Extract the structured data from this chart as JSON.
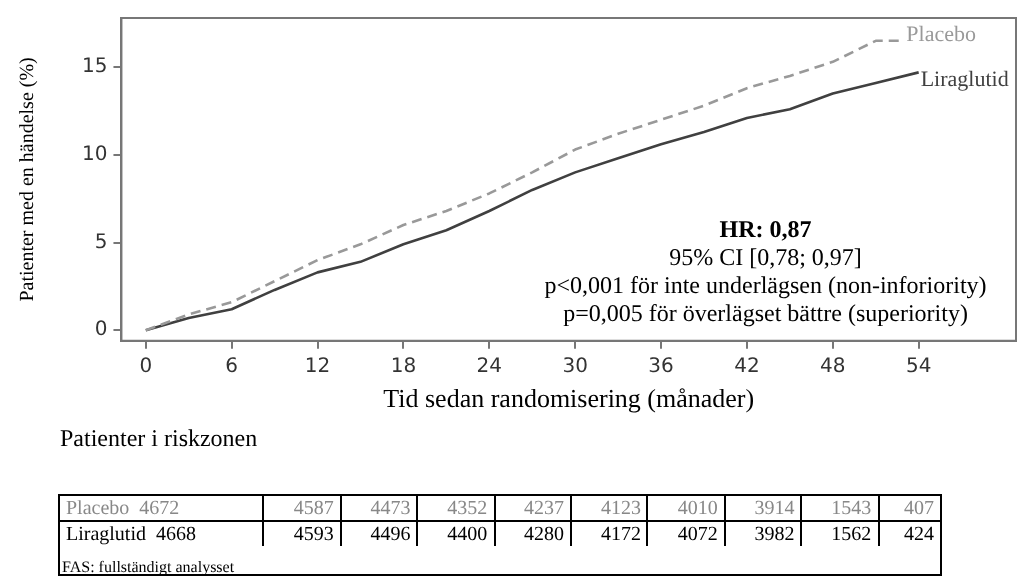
{
  "chart_data": {
    "type": "line",
    "xlabel": "Tid sedan randomisering (månader)",
    "ylabel": "Patienter med en händelse (%)",
    "xlim": [
      -1.7,
      60.8
    ],
    "ylim": [
      -0.6,
      17.8
    ],
    "xticks": [
      0,
      6,
      12,
      18,
      24,
      30,
      36,
      42,
      48,
      54
    ],
    "yticks": [
      0,
      5,
      10,
      15
    ],
    "grid": false,
    "legend": false,
    "marker": "none",
    "series": [
      {
        "name": "Placebo",
        "color": "#999999",
        "line_style": "dashed",
        "x": [
          0,
          3,
          6,
          9,
          12,
          15,
          18,
          21,
          24,
          27,
          30,
          33,
          36,
          39,
          42,
          45,
          48,
          51,
          53
        ],
        "values": [
          0,
          0.9,
          1.6,
          2.8,
          4.0,
          4.9,
          6.0,
          6.8,
          7.8,
          9.0,
          10.3,
          11.2,
          12.0,
          12.8,
          13.8,
          14.5,
          15.3,
          16.5,
          16.5
        ]
      },
      {
        "name": "Liraglutid",
        "color": "#404040",
        "line_style": "solid",
        "x": [
          0,
          3,
          6,
          9,
          12,
          15,
          18,
          21,
          24,
          27,
          30,
          33,
          36,
          39,
          42,
          45,
          48,
          51,
          54
        ],
        "values": [
          0,
          0.7,
          1.2,
          2.3,
          3.3,
          3.9,
          4.9,
          5.7,
          6.8,
          8.0,
          9.0,
          9.8,
          10.6,
          11.3,
          12.1,
          12.6,
          13.5,
          14.1,
          14.7
        ]
      }
    ],
    "annotations": [
      "HR: 0,87",
      "95% CI [0,78; 0,97]",
      "p<0,001 för inte underlägsen (non-inforiority)",
      "p=0,005 för överlägset bättre (superiority)",
      "Patienter i riskzonen",
      "Placebo 4672 4587 4473 4352 4237 4123 4010 3914 1543 407",
      "Liraglutid 4668 4593 4496 4400 4280 4172 4072 3982 1562 424",
      "FAS: fullständigt analysset"
    ]
  }
}
